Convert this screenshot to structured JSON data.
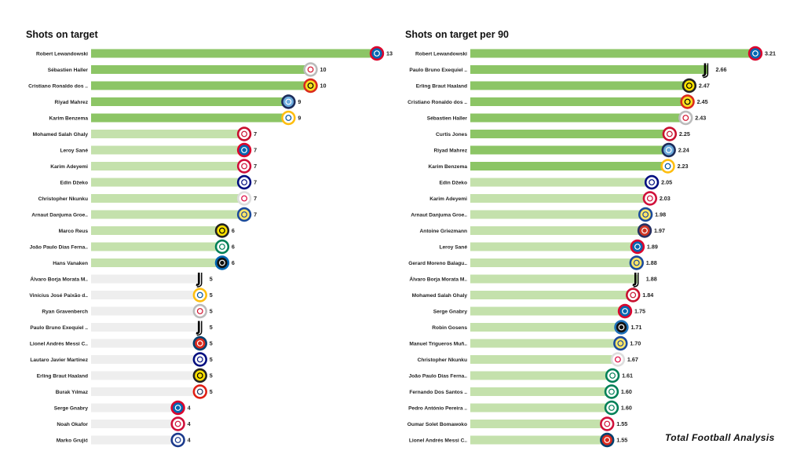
{
  "brand": "Total Football Analysis",
  "colors": {
    "bar_dark": "#8cc565",
    "bar_mid": "#c4e1ac",
    "bar_light": "#eeeeee",
    "text": "#222222"
  },
  "chart_data": [
    {
      "type": "bar",
      "orientation": "horizontal",
      "title": "Shots on target",
      "xlim": [
        0,
        13
      ],
      "categories": [
        "Robert Lewandowski",
        "Sébastien Haller",
        "Cristiano Ronaldo dos ..",
        "Riyad Mahrez",
        "Karim Benzema",
        "Mohamed  Salah Ghaly",
        "Leroy Sané",
        "Karim Adeyemi",
        "Edin Džeko",
        "Christopher Nkunku",
        "Arnaut Danjuma Groe..",
        "Marco Reus",
        "João Paulo Dias Ferna..",
        "Hans Vanaken",
        "Álvaro Borja Morata M..",
        "Vinícius José Paixão d..",
        "Ryan Gravenberch",
        "Paulo Bruno Exequiel ..",
        "Lionel Andrés Messi C..",
        "Lautaro Javier Martínez",
        "Erling Braut Haaland",
        "Burak Yılmaz",
        "Serge  Gnabry",
        "Noah Okafor",
        "Marko Grujić"
      ],
      "values": [
        13,
        10,
        10,
        9,
        9,
        7,
        7,
        7,
        7,
        7,
        7,
        6,
        6,
        6,
        5,
        5,
        5,
        5,
        5,
        5,
        5,
        5,
        4,
        4,
        4
      ],
      "value_labels": [
        "13",
        "10",
        "10",
        "9",
        "9",
        "7",
        "7",
        "7",
        "7",
        "7",
        "7",
        "6",
        "6",
        "6",
        "5",
        "5",
        "5",
        "5",
        "5",
        "5",
        "5",
        "5",
        "4",
        "4",
        "4"
      ],
      "club_icons": [
        "bayern-icon",
        "ajax-icon",
        "man-united-icon",
        "man-city-icon",
        "real-madrid-icon",
        "liverpool-icon",
        "bayern-icon",
        "salzburg-icon",
        "inter-icon",
        "leipzig-icon",
        "villarreal-icon",
        "dortmund-icon",
        "sporting-icon",
        "club-brugge-icon",
        "juventus-icon",
        "real-madrid-icon",
        "ajax-icon",
        "juventus-icon",
        "psg-icon",
        "inter-icon",
        "dortmund-icon",
        "lille-icon",
        "bayern-icon",
        "salzburg-icon",
        "porto-icon"
      ]
    },
    {
      "type": "bar",
      "orientation": "horizontal",
      "title": "Shots on target per 90",
      "xlim": [
        0,
        3.21
      ],
      "categories": [
        "Robert Lewandowski",
        "Paulo Bruno Exequiel ..",
        "Erling Braut Haaland",
        "Cristiano Ronaldo dos ..",
        "Sébastien Haller",
        "Curtis Jones",
        "Riyad Mahrez",
        "Karim Benzema",
        "Edin Džeko",
        "Karim Adeyemi",
        "Arnaut Danjuma Groe..",
        "Antoine Griezmann",
        "Leroy Sané",
        "Gerard Moreno Balagu..",
        "Álvaro Borja Morata M..",
        "Mohamed  Salah Ghaly",
        "Serge  Gnabry",
        "Robin Gosens",
        "Manuel Trigueros Muñ..",
        "Christopher Nkunku",
        "João Paulo Dias Ferna..",
        "Fernando Dos Santos ..",
        "Pedro António Pereira ..",
        "Oumar Solet Bomawoko",
        "Lionel Andrés Messi C.."
      ],
      "values": [
        3.21,
        2.66,
        2.47,
        2.45,
        2.43,
        2.25,
        2.24,
        2.23,
        2.05,
        2.03,
        1.98,
        1.97,
        1.89,
        1.88,
        1.88,
        1.84,
        1.75,
        1.71,
        1.7,
        1.67,
        1.61,
        1.6,
        1.6,
        1.55,
        1.55
      ],
      "value_labels": [
        "3.21",
        "2.66",
        "2.47",
        "2.45",
        "2.43",
        "2.25",
        "2.24",
        "2.23",
        "2.05",
        "2.03",
        "1.98",
        "1.97",
        "1.89",
        "1.88",
        "1.88",
        "1.84",
        "1.75",
        "1.71",
        "1.70",
        "1.67",
        "1.61",
        "1.60",
        "1.60",
        "1.55",
        "1.55"
      ],
      "club_icons": [
        "bayern-icon",
        "juventus-icon",
        "dortmund-icon",
        "man-united-icon",
        "ajax-icon",
        "liverpool-icon",
        "man-city-icon",
        "real-madrid-icon",
        "inter-icon",
        "salzburg-icon",
        "villarreal-icon",
        "atletico-icon",
        "bayern-icon",
        "villarreal-icon",
        "juventus-icon",
        "liverpool-icon",
        "bayern-icon",
        "atalanta-icon",
        "villarreal-icon",
        "leipzig-icon",
        "sporting-icon",
        "sporting-icon",
        "sporting-icon",
        "salzburg-icon",
        "psg-icon"
      ]
    }
  ],
  "icons": {
    "bayern-icon": {
      "ring": "#dc052d",
      "inner": "#0066b2",
      "text": "#ffffff"
    },
    "ajax-icon": {
      "ring": "#bbbbbb",
      "inner": "#ffffff",
      "text": "#d2122e"
    },
    "man-united-icon": {
      "ring": "#da291c",
      "inner": "#fbe122",
      "text": "#000000"
    },
    "man-city-icon": {
      "ring": "#1c2c5b",
      "inner": "#6cabdd",
      "text": "#ffffff"
    },
    "real-madrid-icon": {
      "ring": "#febe10",
      "inner": "#ffffff",
      "text": "#00529f"
    },
    "liverpool-icon": {
      "ring": "#c8102e",
      "inner": "#ffffff",
      "text": "#c8102e"
    },
    "salzburg-icon": {
      "ring": "#d0103a",
      "inner": "#ffffff",
      "text": "#d0103a"
    },
    "inter-icon": {
      "ring": "#010e80",
      "inner": "#ffffff",
      "text": "#010e80"
    },
    "leipzig-icon": {
      "ring": "#dddddd",
      "inner": "#ffffff",
      "text": "#dd0741"
    },
    "villarreal-icon": {
      "ring": "#1b4b9b",
      "inner": "#ffe667",
      "text": "#1b4b9b"
    },
    "dortmund-icon": {
      "ring": "#222222",
      "inner": "#fde100",
      "text": "#000000"
    },
    "sporting-icon": {
      "ring": "#008057",
      "inner": "#ffffff",
      "text": "#008057"
    },
    "club-brugge-icon": {
      "ring": "#0066b3",
      "inner": "#111111",
      "text": "#ffffff"
    },
    "juventus-icon": {
      "ring": "#ffffff",
      "inner": "#ffffff",
      "text": "#000000"
    },
    "psg-icon": {
      "ring": "#004170",
      "inner": "#da291c",
      "text": "#ffffff"
    },
    "lille-icon": {
      "ring": "#e01e13",
      "inner": "#ffffff",
      "text": "#20315c"
    },
    "porto-icon": {
      "ring": "#1b3a8c",
      "inner": "#ffffff",
      "text": "#1b3a8c"
    },
    "atletico-icon": {
      "ring": "#262f61",
      "inner": "#ce3524",
      "text": "#ffffff"
    },
    "atalanta-icon": {
      "ring": "#1e71b8",
      "inner": "#111111",
      "text": "#ffffff"
    }
  }
}
